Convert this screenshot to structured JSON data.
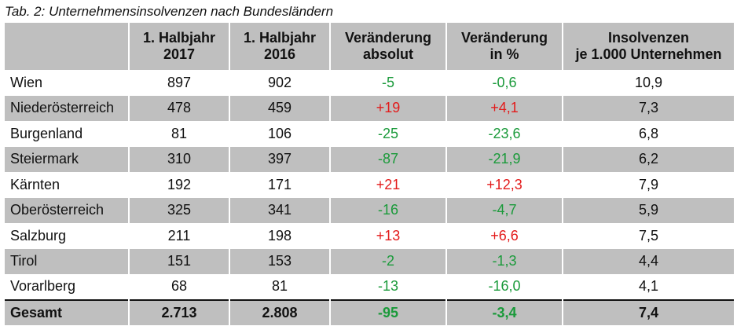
{
  "caption": "Tab. 2: Unternehmensinsolvenzen nach Bundesländern",
  "headers": {
    "h1": "",
    "h2_line1": "1. Halbjahr",
    "h2_line2": "2017",
    "h3_line1": "1. Halbjahr",
    "h3_line2": "2016",
    "h4_line1": "Veränderung",
    "h4_line2": "absolut",
    "h5_line1": "Veränderung",
    "h5_line2": "in %",
    "h6_line1": "Insolvenzen",
    "h6_line2": "je 1.000 Unternehmen"
  },
  "rows": [
    {
      "name": "Wien",
      "y2017": "897",
      "y2016": "902",
      "abs": "-5",
      "pct": "-0,6",
      "per1000": "10,9"
    },
    {
      "name": "Niederösterreich",
      "y2017": "478",
      "y2016": "459",
      "abs": "+19",
      "pct": "+4,1",
      "per1000": "7,3"
    },
    {
      "name": "Burgenland",
      "y2017": "81",
      "y2016": "106",
      "abs": "-25",
      "pct": "-23,6",
      "per1000": "6,8"
    },
    {
      "name": "Steiermark",
      "y2017": "310",
      "y2016": "397",
      "abs": "-87",
      "pct": "-21,9",
      "per1000": "6,2"
    },
    {
      "name": "Kärnten",
      "y2017": "192",
      "y2016": "171",
      "abs": "+21",
      "pct": "+12,3",
      "per1000": "7,9"
    },
    {
      "name": "Oberösterreich",
      "y2017": "325",
      "y2016": "341",
      "abs": "-16",
      "pct": "-4,7",
      "per1000": "5,9"
    },
    {
      "name": "Salzburg",
      "y2017": "211",
      "y2016": "198",
      "abs": "+13",
      "pct": "+6,6",
      "per1000": "7,5"
    },
    {
      "name": "Tirol",
      "y2017": "151",
      "y2016": "153",
      "abs": "-2",
      "pct": "-1,3",
      "per1000": "4,4"
    },
    {
      "name": "Vorarlberg",
      "y2017": "68",
      "y2016": "81",
      "abs": "-13",
      "pct": "-16,0",
      "per1000": "4,1"
    }
  ],
  "total": {
    "name": "Gesamt",
    "y2017": "2.713",
    "y2016": "2.808",
    "abs": "-95",
    "pct": "-3,4",
    "per1000": "7,4"
  },
  "colors": {
    "increase": "#e31b1b",
    "decrease": "#1a9a3a",
    "shade": "#bfbfbf"
  }
}
